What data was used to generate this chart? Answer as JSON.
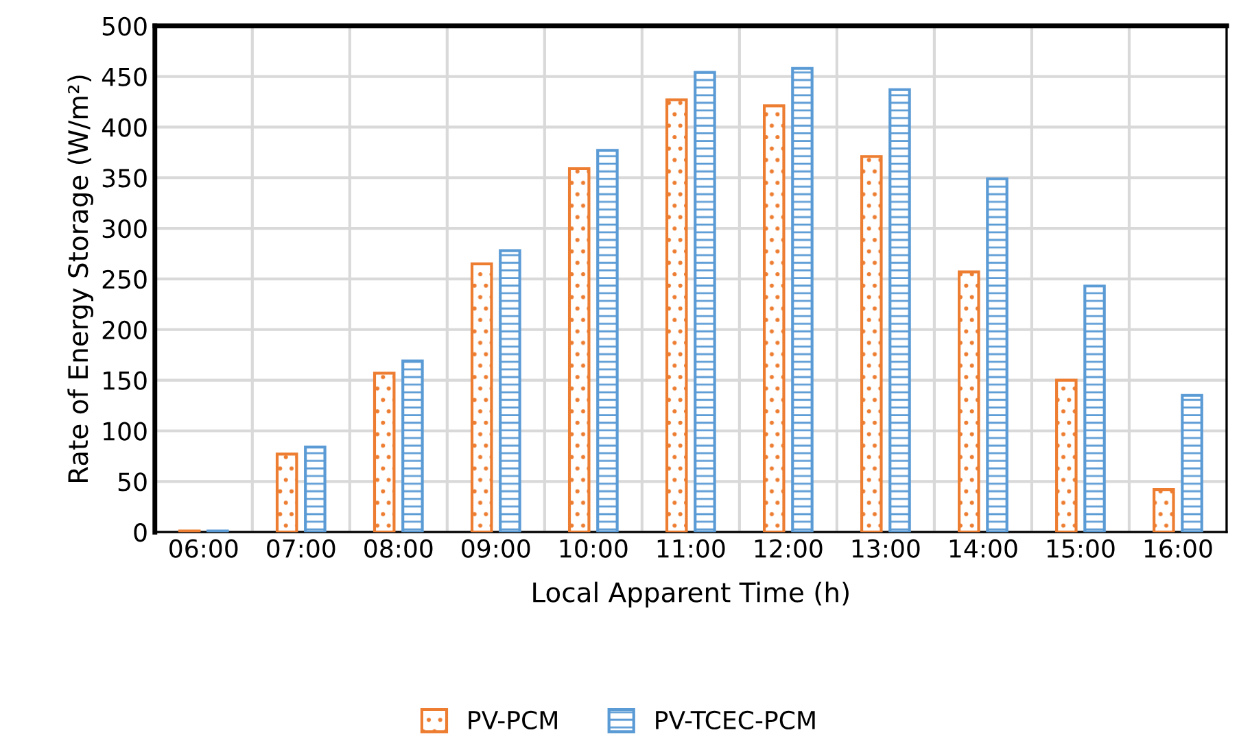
{
  "chart_data": {
    "type": "bar",
    "xlabel": "Local Apparent Time (h)",
    "ylabel": "Rate of Energy Storage (W/m²)",
    "categories": [
      "06:00",
      "07:00",
      "08:00",
      "09:00",
      "10:00",
      "11:00",
      "12:00",
      "13:00",
      "14:00",
      "15:00",
      "16:00"
    ],
    "series": [
      {
        "name": "PV-PCM",
        "color": "#ed7d31",
        "values": [
          1,
          77,
          157,
          265,
          359,
          427,
          421,
          371,
          257,
          150,
          42
        ]
      },
      {
        "name": "PV-TCEC-PCM",
        "color": "#5b9bd5",
        "values": [
          1,
          84,
          169,
          278,
          377,
          454,
          458,
          437,
          349,
          243,
          135
        ]
      }
    ],
    "ylim": [
      0,
      500
    ],
    "yticks": [
      0,
      50,
      100,
      150,
      200,
      250,
      300,
      350,
      400,
      450,
      500
    ],
    "grid": true,
    "legend": "bottom"
  }
}
